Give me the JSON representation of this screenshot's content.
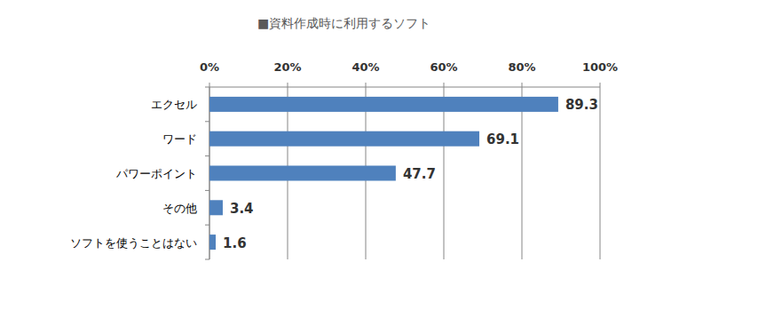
{
  "chart_data": {
    "type": "bar",
    "title": "■資料作成時に利用するソフト",
    "orientation": "horizontal",
    "categories": [
      "エクセル",
      "ワード",
      "パワーポイント",
      "その他",
      "ソフトを使うことはない"
    ],
    "values": [
      89.3,
      69.1,
      47.7,
      3.4,
      1.6
    ],
    "color": "#4f81bd",
    "xlim": [
      0,
      100
    ],
    "xticks": [
      {
        "value": 0,
        "label": "0%"
      },
      {
        "value": 20,
        "label": "20%"
      },
      {
        "value": 40,
        "label": "40%"
      },
      {
        "value": 60,
        "label": "60%"
      },
      {
        "value": 80,
        "label": "80%"
      },
      {
        "value": 100,
        "label": "100%"
      }
    ],
    "grid": true,
    "data_labels": true
  }
}
